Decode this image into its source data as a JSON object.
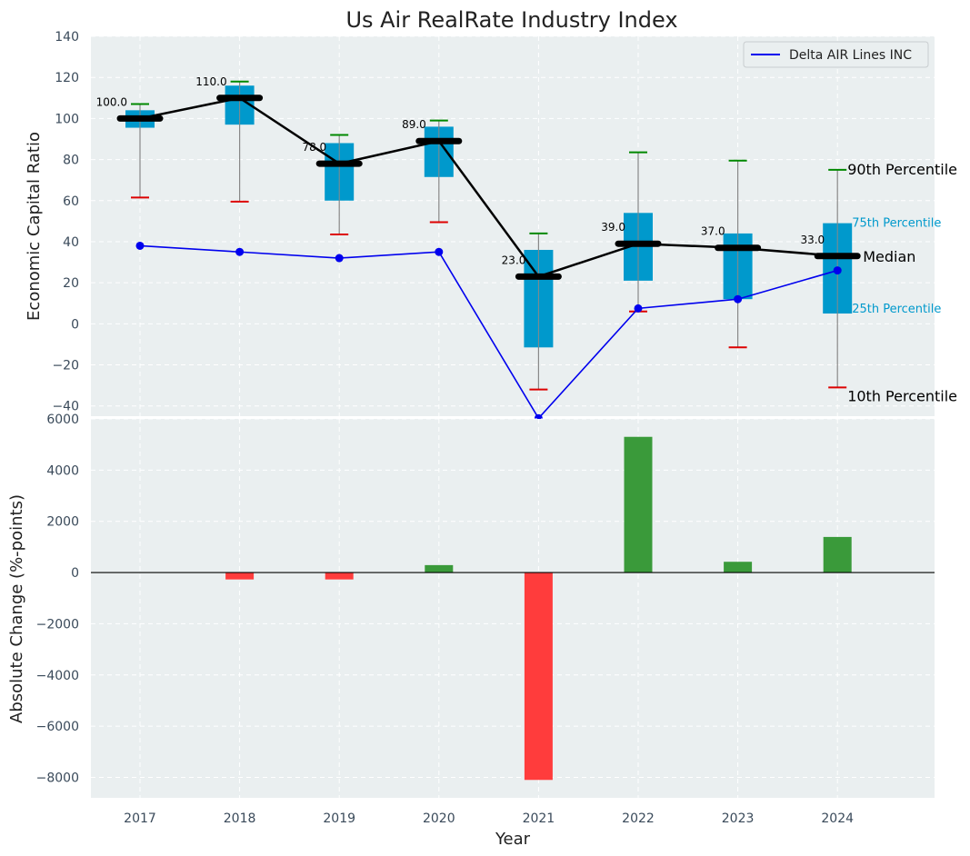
{
  "chart_data": [
    {
      "type": "box",
      "title": "Us Air RealRate Industry Index",
      "ylabel": "Economic Capital Ratio",
      "ylim": [
        -45,
        140
      ],
      "yticks": [
        -40,
        -20,
        0,
        20,
        40,
        60,
        80,
        100,
        120,
        140
      ],
      "ytick_labels": [
        "−40",
        "−20",
        "0",
        "20",
        "40",
        "60",
        "80",
        "100",
        "120",
        "140"
      ],
      "grid": true,
      "categories": [
        "2017",
        "2018",
        "2019",
        "2020",
        "2021",
        "2022",
        "2023",
        "2024"
      ],
      "boxes": [
        {
          "p10": 61.5,
          "p25": 95.5,
          "median": 100,
          "p75": 104,
          "p90": 107
        },
        {
          "p10": 59.5,
          "p25": 97,
          "median": 110,
          "p75": 116,
          "p90": 118
        },
        {
          "p10": 43.5,
          "p25": 60,
          "median": 78,
          "p75": 88,
          "p90": 92
        },
        {
          "p10": 49.5,
          "p25": 71.5,
          "median": 89,
          "p75": 96,
          "p90": 99
        },
        {
          "p10": -32,
          "p25": -11.5,
          "median": 23,
          "p75": 36,
          "p90": 44
        },
        {
          "p10": 6,
          "p25": 21,
          "median": 39,
          "p75": 54,
          "p90": 83.5
        },
        {
          "p10": -11.5,
          "p25": 12,
          "median": 37,
          "p75": 44,
          "p90": 79.5
        },
        {
          "p10": -31,
          "p25": 5,
          "median": 33,
          "p75": 49,
          "p90": 75
        }
      ],
      "median_labels": [
        "100.0",
        "110.0",
        "78.0",
        "89.0",
        "23.0",
        "39.0",
        "37.0",
        "33.0"
      ],
      "series": [
        {
          "name": "Delta AIR Lines INC",
          "values": [
            38,
            35,
            32,
            35,
            -46,
            7.5,
            12,
            26
          ],
          "color": "#0000ee"
        }
      ],
      "legend": {
        "position": "top-right"
      },
      "annotations": {
        "p90": "90th Percentile",
        "p75": "75th Percentile",
        "median": "Median",
        "p25": "25th Percentile",
        "p10": "10th Percentile"
      },
      "colors": {
        "box": "#0099cc",
        "median_line": "#000000",
        "whisker_high": "#008800",
        "whisker_low": "#dd0000",
        "background": "#eaeff0"
      }
    },
    {
      "type": "bar",
      "ylabel": "Absolute Change (%-points)",
      "xlabel": "Year",
      "ylim": [
        -8800,
        6000
      ],
      "yticks": [
        -8000,
        -6000,
        -4000,
        -2000,
        0,
        2000,
        4000,
        6000
      ],
      "ytick_labels": [
        "−8000",
        "−6000",
        "−4000",
        "−2000",
        "0",
        "2000",
        "4000",
        "6000"
      ],
      "grid": true,
      "categories": [
        "2017",
        "2018",
        "2019",
        "2020",
        "2021",
        "2022",
        "2023",
        "2024"
      ],
      "values": [
        0,
        -270,
        -270,
        290,
        -8100,
        5300,
        420,
        1390
      ],
      "colors": {
        "positive": "#3a9a3a",
        "negative": "#ff3c3c"
      }
    }
  ]
}
